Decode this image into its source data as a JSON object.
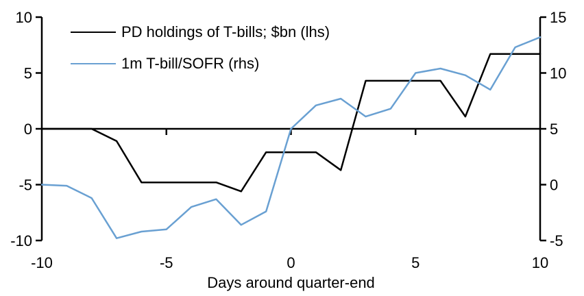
{
  "chart_data": {
    "type": "line",
    "xlabel": "Days around quarter-end",
    "x": [
      -10,
      -9,
      -8,
      -7,
      -6,
      -5,
      -4,
      -3,
      -2,
      -1,
      0,
      1,
      2,
      3,
      4,
      5,
      6,
      7,
      8,
      9,
      10
    ],
    "series": [
      {
        "name": "PD holdings of T-bills; $bn (lhs)",
        "axis": "left",
        "color": "#000000",
        "values": [
          0,
          0,
          0,
          -1.1,
          -4.8,
          -4.8,
          -4.8,
          -4.8,
          -5.6,
          -2.1,
          -2.1,
          -2.1,
          -3.7,
          4.3,
          4.3,
          4.3,
          4.3,
          1.1,
          6.7,
          6.7,
          6.7
        ]
      },
      {
        "name": "1m T-bill/SOFR (rhs)",
        "axis": "right",
        "color": "#69A0D2",
        "values": [
          0.0,
          -0.1,
          -1.2,
          -4.8,
          -4.2,
          -4.0,
          -2.0,
          -1.3,
          -3.6,
          -2.4,
          5.0,
          7.1,
          7.7,
          6.1,
          6.8,
          10.0,
          10.4,
          9.8,
          8.5,
          12.3,
          13.2
        ]
      }
    ],
    "left_axis": {
      "range": [
        -10,
        10
      ],
      "ticks": [
        10,
        5,
        0,
        -5,
        -10
      ]
    },
    "right_axis": {
      "range": [
        -5,
        15
      ],
      "ticks": [
        15,
        10,
        5,
        0,
        -5
      ]
    },
    "x_axis": {
      "range": [
        -10,
        10
      ],
      "tick_labels": [
        -10,
        -5,
        0,
        5,
        10
      ],
      "zero_line_ticks": [
        -5,
        0,
        5
      ]
    },
    "axis_color": "#000000",
    "legend_position": "top-left-inside",
    "grid": false
  }
}
